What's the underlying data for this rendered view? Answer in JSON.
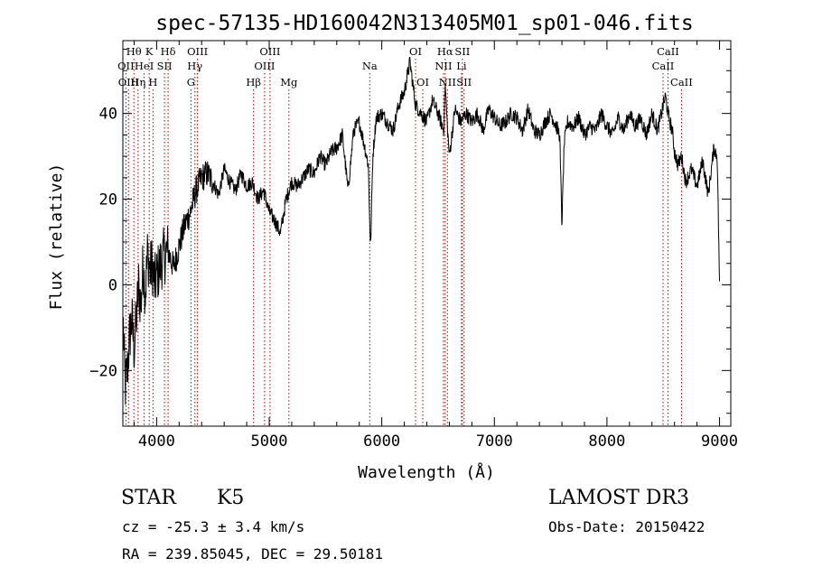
{
  "chart_data": {
    "type": "line",
    "title": "spec-57135-HD160042N313405M01_sp01-046.fits",
    "xlabel": "Wavelength (Å)",
    "ylabel": "Flux (relative)",
    "xlim": [
      3700,
      9100
    ],
    "ylim": [
      -33,
      57
    ],
    "xticks": [
      4000,
      5000,
      6000,
      7000,
      8000,
      9000
    ],
    "xtick_labels": [
      "4000",
      "5000",
      "6000",
      "7000",
      "8000",
      "9000"
    ],
    "yticks": [
      -20,
      0,
      20,
      40
    ],
    "ytick_labels": [
      "−20",
      "0",
      "20",
      "40"
    ],
    "series": [
      {
        "name": "flux",
        "x": [
          3700,
          3720,
          3740,
          3760,
          3780,
          3800,
          3820,
          3840,
          3860,
          3880,
          3900,
          3920,
          3940,
          3960,
          3980,
          4000,
          4050,
          4100,
          4150,
          4200,
          4250,
          4300,
          4350,
          4400,
          4450,
          4500,
          4550,
          4600,
          4650,
          4700,
          4750,
          4800,
          4850,
          4900,
          4950,
          5000,
          5050,
          5100,
          5150,
          5200,
          5250,
          5300,
          5350,
          5400,
          5450,
          5500,
          5550,
          5600,
          5650,
          5700,
          5750,
          5800,
          5850,
          5880,
          5900,
          5920,
          5950,
          6000,
          6050,
          6100,
          6150,
          6200,
          6250,
          6300,
          6350,
          6400,
          6450,
          6500,
          6550,
          6563,
          6580,
          6600,
          6650,
          6700,
          6750,
          6800,
          6850,
          6900,
          6950,
          7000,
          7050,
          7100,
          7150,
          7200,
          7250,
          7300,
          7350,
          7400,
          7450,
          7500,
          7550,
          7580,
          7600,
          7620,
          7650,
          7700,
          7750,
          7800,
          7850,
          7900,
          7950,
          8000,
          8050,
          8100,
          8150,
          8200,
          8250,
          8300,
          8350,
          8400,
          8450,
          8500,
          8520,
          8542,
          8560,
          8580,
          8600,
          8630,
          8662,
          8700,
          8750,
          8800,
          8850,
          8900,
          8950,
          8980,
          9000
        ],
        "values": [
          -5,
          -24,
          -20,
          -12,
          -8,
          -15,
          -8,
          0,
          -5,
          5,
          -2,
          8,
          3,
          5,
          0,
          2,
          6,
          8,
          4,
          9,
          14,
          17,
          22,
          25,
          26,
          24,
          21,
          27,
          24,
          22,
          26,
          23,
          24,
          20,
          22,
          17,
          15,
          12,
          20,
          24,
          23,
          25,
          27,
          26,
          30,
          28,
          31,
          32,
          35,
          22,
          36,
          38,
          32,
          28,
          8,
          30,
          39,
          40,
          38,
          36,
          42,
          45,
          52,
          42,
          40,
          38,
          43,
          40,
          36,
          47,
          38,
          30,
          41,
          38,
          40,
          38,
          40,
          36,
          41,
          39,
          37,
          38,
          40,
          39,
          36,
          41,
          36,
          35,
          38,
          40,
          37,
          35,
          14,
          33,
          38,
          37,
          39,
          35,
          37,
          36,
          40,
          37,
          35,
          39,
          36,
          40,
          37,
          39,
          35,
          40,
          36,
          42,
          44,
          40,
          38,
          36,
          31,
          28,
          30,
          24,
          27,
          23,
          29,
          21,
          32,
          30,
          0
        ]
      }
    ],
    "lines": [
      {
        "label": "Hθ",
        "wave": 3798,
        "row": 1
      },
      {
        "label": "OII",
        "wave": 3727,
        "row": 2
      },
      {
        "label": "OIII",
        "wave": 3750,
        "row": 3
      },
      {
        "label": "K",
        "wave": 3934,
        "row": 1
      },
      {
        "label": "HeI",
        "wave": 3889,
        "row": 2
      },
      {
        "label": "Hη",
        "wave": 3835,
        "row": 3
      },
      {
        "label": "H",
        "wave": 3968,
        "row": 3
      },
      {
        "label": "SII",
        "wave": 4070,
        "row": 2
      },
      {
        "label": "Hδ",
        "wave": 4102,
        "row": 1
      },
      {
        "label": "OIII",
        "wave": 4363,
        "row": 1
      },
      {
        "label": "Hγ",
        "wave": 4340,
        "row": 2
      },
      {
        "label": "G",
        "wave": 4305,
        "row": 3
      },
      {
        "label": "Hβ",
        "wave": 4861,
        "row": 3
      },
      {
        "label": "OIII",
        "wave": 4959,
        "row": 2
      },
      {
        "label": "OIII",
        "wave": 5007,
        "row": 1
      },
      {
        "label": "Mg",
        "wave": 5175,
        "row": 3
      },
      {
        "label": "Na",
        "wave": 5893,
        "row": 2
      },
      {
        "label": "OI",
        "wave": 6300,
        "row": 1
      },
      {
        "label": "OI",
        "wave": 6364,
        "row": 3
      },
      {
        "label": "Hα",
        "wave": 6563,
        "row": 1
      },
      {
        "label": "NII",
        "wave": 6548,
        "row": 2
      },
      {
        "label": "NII",
        "wave": 6583,
        "row": 3
      },
      {
        "label": "SII",
        "wave": 6716,
        "row": 1
      },
      {
        "label": "Li",
        "wave": 6708,
        "row": 2
      },
      {
        "label": "SII",
        "wave": 6731,
        "row": 3
      },
      {
        "label": "CaII",
        "wave": 8542,
        "row": 1
      },
      {
        "label": "CaII",
        "wave": 8498,
        "row": 2
      },
      {
        "label": "CaII",
        "wave": 8662,
        "row": 3
      }
    ]
  },
  "info": {
    "object_class": "STAR",
    "subclass": "K5",
    "survey": "LAMOST DR3",
    "cz": "cz = -25.3 ± 3.4 km/s",
    "obs_date": "Obs-Date: 20150422",
    "coords": "RA = 239.85045, DEC =  29.50181"
  },
  "colors": {
    "line_markers": "#b00000",
    "spectrum": "#000000"
  }
}
